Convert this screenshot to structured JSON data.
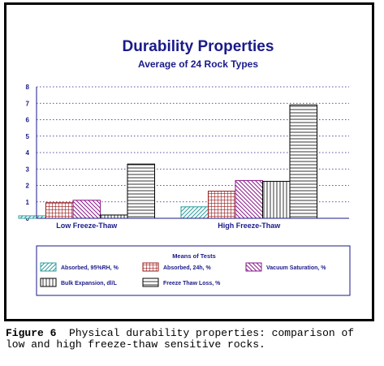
{
  "chart_data": {
    "type": "bar",
    "title": "Durability Properties",
    "subtitle": "Average of 24 Rock Types",
    "categories": [
      "Low Freeze-Thaw",
      "High Freeze-Thaw"
    ],
    "ylim": [
      0,
      8
    ],
    "yticks": [
      "0",
      "1",
      "2",
      "3",
      "4",
      "5",
      "6",
      "7",
      "8"
    ],
    "grid": true,
    "legend_title": "Means of Tests",
    "legend_position": "bottom",
    "series": [
      {
        "name": "Absorbed, 95%RH, %",
        "values": [
          0.15,
          0.7
        ],
        "pattern": "diag-right",
        "color": "#2e9c9c"
      },
      {
        "name": "Absorbed, 24h, %",
        "values": [
          0.95,
          1.65
        ],
        "pattern": "grid",
        "color": "#9a1a1a"
      },
      {
        "name": "Vacuum Saturation, %",
        "values": [
          1.1,
          2.3
        ],
        "pattern": "diag-left",
        "color": "#8a1a8a"
      },
      {
        "name": "Bulk Expansion, dl/L",
        "values": [
          0.2,
          2.25
        ],
        "pattern": "vertical",
        "color": "#000000"
      },
      {
        "name": "Freeze Thaw Loss, %",
        "values": [
          3.3,
          6.9
        ],
        "pattern": "horizontal",
        "color": "#000000"
      }
    ]
  },
  "caption": {
    "label": "Figure 6",
    "text": "Physical durability properties: comparison of low and high freeze-thaw sensitive rocks."
  }
}
